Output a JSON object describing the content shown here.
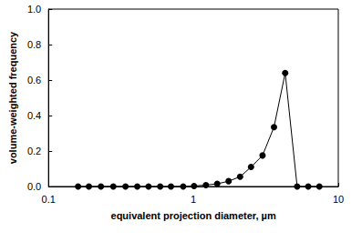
{
  "chart_data": {
    "type": "line",
    "x_label": "equivalent projection diameter, µm",
    "y_label": "volume-weighted frequency",
    "x": [
      0.16,
      0.19,
      0.23,
      0.28,
      0.34,
      0.41,
      0.49,
      0.59,
      0.7,
      0.85,
      1.01,
      1.22,
      1.46,
      1.75,
      2.1,
      2.5,
      3.0,
      3.6,
      4.3,
      5.2,
      6.2,
      7.4
    ],
    "values": [
      0,
      0,
      0,
      0,
      0,
      0,
      0,
      0,
      0,
      0,
      0.003,
      0.008,
      0.015,
      0.03,
      0.055,
      0.11,
      0.175,
      0.335,
      0.64,
      0,
      0,
      0
    ],
    "color": "#000000",
    "marker": "circle",
    "line_style": "solid",
    "log": "x",
    "grid": false,
    "xlim": [
      0.1,
      10
    ],
    "xticks": [
      0.1,
      1,
      10
    ],
    "ylim": [
      0,
      1
    ],
    "yticks": [
      {
        "value": 0,
        "label": "0.0"
      },
      {
        "value": 0.2,
        "label": "0.2"
      },
      {
        "value": 0.4,
        "label": "0.4"
      },
      {
        "value": 0.6,
        "label": "0.6"
      },
      {
        "value": 0.8,
        "label": "0.8"
      },
      {
        "value": 1,
        "label": "1.0"
      }
    ]
  }
}
